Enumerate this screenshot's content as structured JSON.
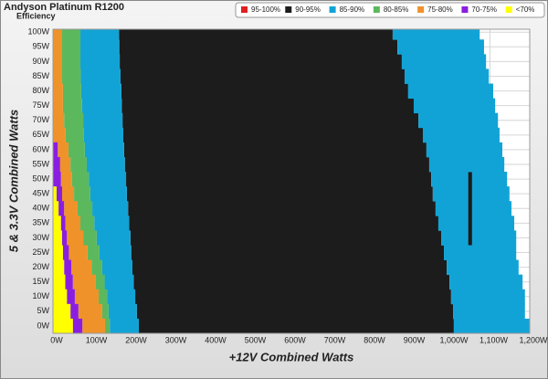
{
  "chart_data": {
    "type": "heatmap",
    "title": "Andyson Platinum R1200",
    "subtitle": "Efficiency",
    "xlabel": "+12V Combined Watts",
    "ylabel": "5 & 3.3V Combined Watts",
    "xlim": [
      0,
      1200
    ],
    "ylim": [
      -2.5,
      101
    ],
    "xticks": [
      {
        "value": 0,
        "label": "0W"
      },
      {
        "value": 100,
        "label": "100W"
      },
      {
        "value": 200,
        "label": "200W"
      },
      {
        "value": 300,
        "label": "300W"
      },
      {
        "value": 400,
        "label": "400W"
      },
      {
        "value": 500,
        "label": "500W"
      },
      {
        "value": 600,
        "label": "600W"
      },
      {
        "value": 700,
        "label": "700W"
      },
      {
        "value": 800,
        "label": "800W"
      },
      {
        "value": 900,
        "label": "900W"
      },
      {
        "value": 1000,
        "label": "1,000W"
      },
      {
        "value": 1100,
        "label": "1,100W"
      },
      {
        "value": 1200,
        "label": "1,200W"
      }
    ],
    "yticks": [
      {
        "value": 0,
        "label": "0W"
      },
      {
        "value": 5,
        "label": "5W"
      },
      {
        "value": 10,
        "label": "10W"
      },
      {
        "value": 15,
        "label": "15W"
      },
      {
        "value": 20,
        "label": "20W"
      },
      {
        "value": 25,
        "label": "25W"
      },
      {
        "value": 30,
        "label": "30W"
      },
      {
        "value": 35,
        "label": "35W"
      },
      {
        "value": 40,
        "label": "40W"
      },
      {
        "value": 45,
        "label": "45W"
      },
      {
        "value": 50,
        "label": "50W"
      },
      {
        "value": 55,
        "label": "55W"
      },
      {
        "value": 60,
        "label": "60W"
      },
      {
        "value": 65,
        "label": "65W"
      },
      {
        "value": 70,
        "label": "70W"
      },
      {
        "value": 75,
        "label": "75W"
      },
      {
        "value": 80,
        "label": "80W"
      },
      {
        "value": 85,
        "label": "85W"
      },
      {
        "value": 90,
        "label": "90W"
      },
      {
        "value": 95,
        "label": "95W"
      },
      {
        "value": 100,
        "label": "100W"
      }
    ],
    "grid": true,
    "y": [
      0,
      5,
      10,
      15,
      20,
      25,
      30,
      35,
      40,
      45,
      50,
      55,
      60,
      65,
      70,
      75,
      80,
      85,
      90,
      95,
      100
    ],
    "series": [
      {
        "name": "95-100%",
        "color": "#e02020"
      },
      {
        "name": "90-95%",
        "color": "#1c1c1c",
        "ranges": [
          [
            [
              216,
              1009
            ]
          ],
          [
            [
              211,
              1007
            ]
          ],
          [
            [
              207,
              1002
            ]
          ],
          [
            [
              203,
              998
            ]
          ],
          [
            [
              200,
              991
            ]
          ],
          [
            [
              197,
              984
            ]
          ],
          [
            [
              195,
              977
            ],
            [
              1045,
              1055
            ]
          ],
          [
            [
              192,
              970
            ],
            [
              1045,
              1055
            ]
          ],
          [
            [
              189,
              963
            ],
            [
              1045,
              1055
            ]
          ],
          [
            [
              186,
              956
            ],
            [
              1045,
              1055
            ]
          ],
          [
            [
              184,
              952
            ],
            [
              1045,
              1055
            ]
          ],
          [
            [
              181,
              947
            ]
          ],
          [
            [
              179,
              940
            ]
          ],
          [
            [
              177,
              931
            ]
          ],
          [
            [
              175,
              920
            ]
          ],
          [
            [
              173,
              908
            ]
          ],
          [
            [
              172,
              894
            ]
          ],
          [
            [
              170,
              885
            ]
          ],
          [
            [
              168,
              878
            ]
          ],
          [
            [
              167,
              867
            ]
          ],
          [
            [
              166,
              855
            ]
          ]
        ]
      },
      {
        "name": "85-90%",
        "color": "#12a3d6",
        "ranges": [
          [
            [
              143,
              216
            ],
            [
              1009,
              1200
            ]
          ],
          [
            [
              140,
              211
            ],
            [
              1007,
              1188
            ]
          ],
          [
            [
              136,
              207
            ],
            [
              1002,
              1188
            ]
          ],
          [
            [
              130,
              203
            ],
            [
              998,
              1182
            ]
          ],
          [
            [
              124,
              200
            ],
            [
              991,
              1172
            ]
          ],
          [
            [
              117,
              197
            ],
            [
              984,
              1166
            ]
          ],
          [
            [
              110,
              195
            ],
            [
              977,
              1045
            ],
            [
              1055,
              1166
            ]
          ],
          [
            [
              104,
              192
            ],
            [
              970,
              1045
            ],
            [
              1055,
              1161
            ]
          ],
          [
            [
              99,
              189
            ],
            [
              963,
              1045
            ],
            [
              1055,
              1154
            ]
          ],
          [
            [
              94,
              186
            ],
            [
              956,
              1045
            ],
            [
              1055,
              1149
            ]
          ],
          [
            [
              90,
              184
            ],
            [
              952,
              1045
            ],
            [
              1055,
              1143
            ]
          ],
          [
            [
              85,
              181
            ],
            [
              947,
              1136
            ]
          ],
          [
            [
              80,
              179
            ],
            [
              940,
              1131
            ]
          ],
          [
            [
              78,
              177
            ],
            [
              931,
              1124
            ]
          ],
          [
            [
              76,
              175
            ],
            [
              920,
              1120
            ]
          ],
          [
            [
              73,
              173
            ],
            [
              908,
              1113
            ]
          ],
          [
            [
              71,
              172
            ],
            [
              894,
              1108
            ]
          ],
          [
            [
              70,
              170
            ],
            [
              885,
              1097
            ]
          ],
          [
            [
              69,
              168
            ],
            [
              878,
              1090
            ]
          ],
          [
            [
              69,
              167
            ],
            [
              867,
              1085
            ]
          ],
          [
            [
              69,
              166
            ],
            [
              855,
              1074
            ]
          ]
        ]
      },
      {
        "name": "80-85%",
        "color": "#5cb85c",
        "ranges": [
          [
            [
              131,
              143
            ]
          ],
          [
            [
              124,
              140
            ]
          ],
          [
            [
              115,
              136
            ]
          ],
          [
            [
              108,
              130
            ]
          ],
          [
            [
              97,
              124
            ]
          ],
          [
            [
              87,
              117
            ]
          ],
          [
            [
              76,
              110
            ]
          ],
          [
            [
              69,
              104
            ]
          ],
          [
            [
              62,
              99
            ]
          ],
          [
            [
              53,
              94
            ]
          ],
          [
            [
              48,
              90
            ]
          ],
          [
            [
              44,
              85
            ]
          ],
          [
            [
              39,
              80
            ]
          ],
          [
            [
              32,
              78
            ]
          ],
          [
            [
              28,
              76
            ]
          ],
          [
            [
              25,
              73
            ]
          ],
          [
            [
              25,
              71
            ]
          ],
          [
            [
              23,
              70
            ]
          ],
          [
            [
              23,
              69
            ]
          ],
          [
            [
              23,
              69
            ]
          ],
          [
            [
              23,
              69
            ]
          ]
        ]
      },
      {
        "name": "75-80%",
        "color": "#f0922a",
        "ranges": [
          [
            [
              74,
              131
            ]
          ],
          [
            [
              64,
              124
            ]
          ],
          [
            [
              55,
              115
            ]
          ],
          [
            [
              50,
              108
            ]
          ],
          [
            [
              46,
              97
            ]
          ],
          [
            [
              40,
              87
            ]
          ],
          [
            [
              35,
              76
            ]
          ],
          [
            [
              31,
              69
            ]
          ],
          [
            [
              28,
              62
            ]
          ],
          [
            [
              23,
              53
            ]
          ],
          [
            [
              20,
              48
            ]
          ],
          [
            [
              18,
              44
            ]
          ],
          [
            [
              12,
              39
            ]
          ],
          [
            [
              0,
              32
            ]
          ],
          [
            [
              0,
              28
            ]
          ],
          [
            [
              0,
              25
            ]
          ],
          [
            [
              0,
              25
            ]
          ],
          [
            [
              0,
              23
            ]
          ],
          [
            [
              0,
              23
            ]
          ],
          [
            [
              0,
              23
            ]
          ],
          [
            [
              0,
              23
            ]
          ]
        ]
      },
      {
        "name": "70-75%",
        "color": "#8a1ee0",
        "ranges": [
          [
            [
              50,
              74
            ]
          ],
          [
            [
              44,
              64
            ]
          ],
          [
            [
              35,
              55
            ]
          ],
          [
            [
              31,
              50
            ]
          ],
          [
            [
              28,
              46
            ]
          ],
          [
            [
              25,
              40
            ]
          ],
          [
            [
              23,
              35
            ]
          ],
          [
            [
              20,
              31
            ]
          ],
          [
            [
              14,
              28
            ]
          ],
          [
            [
              9,
              23
            ]
          ],
          [
            [
              0,
              20
            ]
          ],
          [
            [
              0,
              18
            ]
          ],
          [
            [
              0,
              12
            ]
          ],
          [],
          [],
          [],
          [],
          [],
          [],
          [],
          []
        ]
      },
      {
        "name": "<70%",
        "color": "#ffff00",
        "ranges": [
          [
            [
              0,
              50
            ]
          ],
          [
            [
              0,
              44
            ]
          ],
          [
            [
              0,
              35
            ]
          ],
          [
            [
              0,
              31
            ]
          ],
          [
            [
              0,
              28
            ]
          ],
          [
            [
              0,
              25
            ]
          ],
          [
            [
              0,
              23
            ]
          ],
          [
            [
              0,
              20
            ]
          ],
          [
            [
              0,
              14
            ]
          ],
          [
            [
              0,
              9
            ]
          ],
          [],
          [],
          [],
          [],
          [],
          [],
          [],
          [],
          [],
          [],
          []
        ]
      }
    ]
  }
}
